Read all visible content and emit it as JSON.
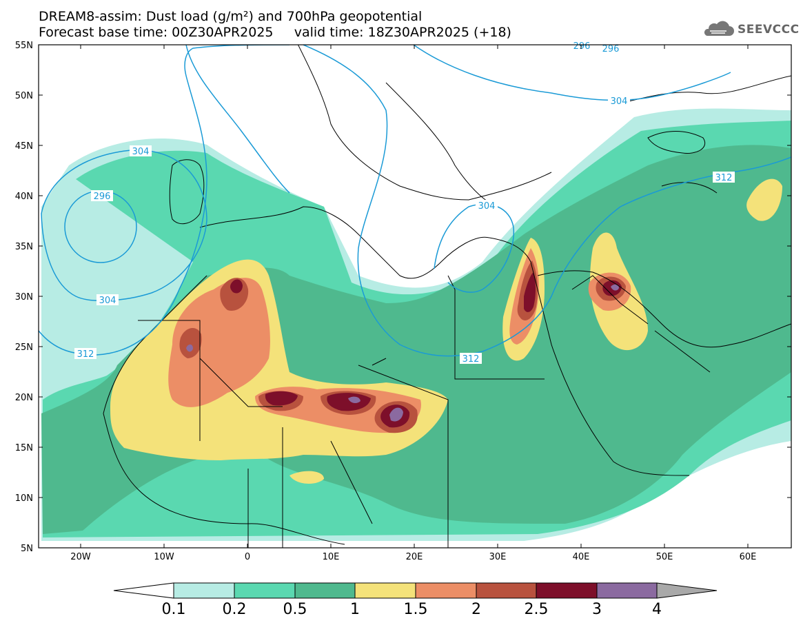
{
  "title": {
    "line1": "DREAM8-assim: Dust load (g/m²) and 700hPa geopotential",
    "line2": "Forecast base time: 00Z30APR2025     valid time: 18Z30APR2025 (+18)"
  },
  "logo": {
    "text": "SEEVCCC",
    "icon": "cloud-icon"
  },
  "axes": {
    "lat_ticks": [
      "55N",
      "50N",
      "45N",
      "40N",
      "35N",
      "30N",
      "25N",
      "20N",
      "15N",
      "10N",
      "5N"
    ],
    "lon_ticks": [
      "20W",
      "10W",
      "0",
      "10E",
      "20E",
      "30E",
      "40E",
      "50E",
      "60E"
    ]
  },
  "contours": {
    "labels": [
      "296",
      "296",
      "304",
      "296",
      "304",
      "304",
      "312",
      "312",
      "304",
      "312"
    ],
    "color": "#1a9ad6"
  },
  "colorbar": {
    "levels": [
      "0.1",
      "0.2",
      "0.5",
      "1",
      "1.5",
      "2",
      "2.5",
      "3",
      "4"
    ],
    "colors": [
      "#b7ece4",
      "#5ad8b0",
      "#4fb98e",
      "#f4e27a",
      "#ec8e66",
      "#b8523e",
      "#7d0f2a",
      "#8b6aa0",
      "#a9a9a9"
    ]
  }
}
